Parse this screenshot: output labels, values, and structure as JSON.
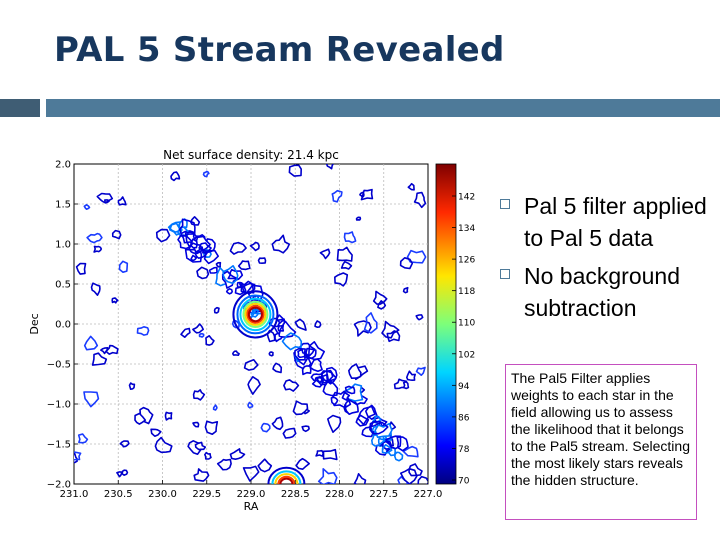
{
  "slide": {
    "title": "PAL 5 Stream Revealed"
  },
  "bullets": [
    {
      "text": "Pal 5 filter applied to Pal 5 data"
    },
    {
      "text": "No background subtraction"
    }
  ],
  "callout": {
    "text": "The Pal5 Filter applies weights to each star in the field allowing us to assess the likelihood that it belongs to the Pal5 stream. Selecting the most likely stars reveals the hidden structure."
  },
  "chart_data": {
    "type": "heatmap",
    "title": "Net surface density: 21.4 kpc",
    "xlabel": "RA",
    "ylabel": "Dec",
    "xlim": [
      231.0,
      227.0
    ],
    "ylim": [
      -2.0,
      2.0
    ],
    "x_ticks": [
      "231.0",
      "230.5",
      "230.0",
      "229.5",
      "229.0",
      "228.5",
      "228.0",
      "227.5",
      "227.0"
    ],
    "y_ticks": [
      "2.0",
      "1.5",
      "1.0",
      "0.5",
      "0.0",
      "−0.5",
      "−1.0",
      "−1.5",
      "−2.0"
    ],
    "colorbar_ticks": [
      "142",
      "134",
      "126",
      "118",
      "110",
      "102",
      "94",
      "86",
      "78",
      "70"
    ],
    "colorbar_range": [
      70,
      150
    ],
    "grid": true,
    "features": [
      {
        "label": "cluster core",
        "ra": 228.95,
        "dec": 0.12,
        "level": 150
      },
      {
        "label": "stream",
        "ra": 229.5,
        "dec": 0.9,
        "level": 90
      },
      {
        "label": "stream",
        "ra": 228.2,
        "dec": -0.6,
        "level": 88
      },
      {
        "label": "stream",
        "ra": 227.6,
        "dec": -1.4,
        "level": 86
      },
      {
        "label": "bottom blob",
        "ra": 228.6,
        "dec": -1.95,
        "level": 140
      }
    ]
  }
}
